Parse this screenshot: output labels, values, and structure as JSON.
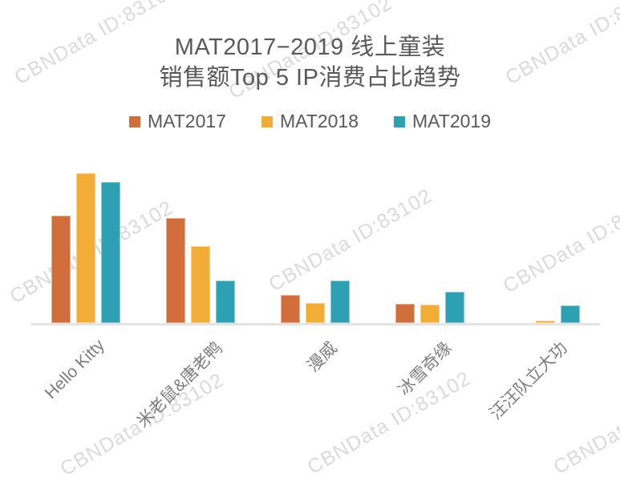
{
  "watermark": {
    "text": "CBNData ID:83102"
  },
  "title": {
    "line1": "MAT2017−2019 线上童装",
    "line2": "销售额Top 5 IP消费占比趋势"
  },
  "colors": {
    "mat2017": "#D26E3B",
    "mat2018": "#F2AD37",
    "mat2019": "#2EA0B4",
    "axis_line": "#E4E4E4",
    "title_text": "#595959",
    "category_label_text": "#7D7D7D",
    "watermark_text": "#A8A8A8"
  },
  "chart_data": {
    "type": "bar",
    "title": "MAT2017−2019 线上童装 销售额Top 5 IP消费占比趋势",
    "categories": [
      "Hello Kitty",
      "米老鼠&唐老鸭",
      "漫威",
      "冰雪奇缘",
      "汪汪队立大功"
    ],
    "series": [
      {
        "name": "MAT2017",
        "color": "#D26E3B",
        "values": [
          71.7,
          70.1,
          18.7,
          12.8,
          0
        ]
      },
      {
        "name": "MAT2018",
        "color": "#F2AD37",
        "values": [
          100,
          51.3,
          13.4,
          12.3,
          1.6
        ]
      },
      {
        "name": "MAT2019",
        "color": "#2EA0B4",
        "values": [
          94.1,
          28.3,
          28.3,
          20.9,
          11.8
        ]
      }
    ],
    "xlabel": "",
    "ylabel": "",
    "value_axis_note": "no ticks, gridlines or data labels visible; values are relative bar heights scaled so the maximum bar (Hello Kitty, MAT2018) = 100",
    "ylim": [
      0,
      100
    ],
    "grid": false,
    "legend_position": "top"
  }
}
